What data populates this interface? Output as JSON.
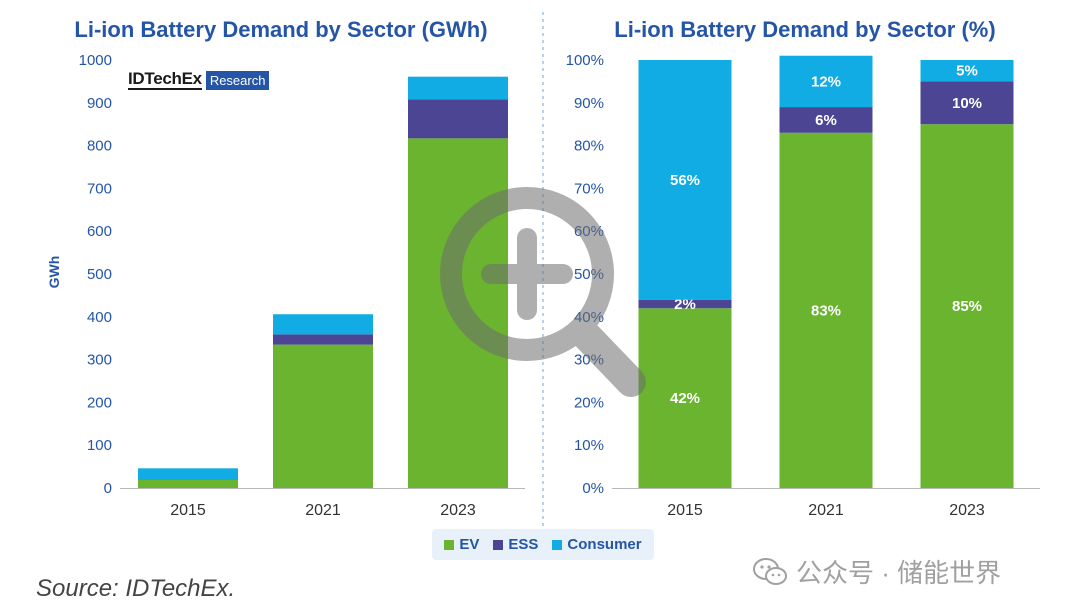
{
  "colors": {
    "EV": "#6ab42f",
    "ESS": "#4b4593",
    "Consumer": "#10ace3"
  },
  "logo": {
    "main": "IDTechEx",
    "tag": "Research"
  },
  "legend": [
    {
      "name": "EV",
      "color_key": "EV"
    },
    {
      "name": "ESS",
      "color_key": "ESS"
    },
    {
      "name": "Consumer",
      "color_key": "Consumer"
    }
  ],
  "source": "Source: IDTechEx.",
  "watermark": "公众号 · 储能世界",
  "chart_data": [
    {
      "type": "bar",
      "stacked": true,
      "title": "Li-ion Battery Demand by Sector (GWh)",
      "ylabel": "GWh",
      "categories": [
        "2015",
        "2021",
        "2023"
      ],
      "ylim": [
        0,
        1000
      ],
      "yticks": [
        "0",
        "100",
        "200",
        "300",
        "400",
        "500",
        "600",
        "700",
        "800",
        "900",
        "1000"
      ],
      "series": [
        {
          "name": "EV",
          "values": [
            19,
            335,
            817
          ]
        },
        {
          "name": "ESS",
          "values": [
            1,
            24,
            91
          ]
        },
        {
          "name": "Consumer",
          "values": [
            26,
            47,
            53
          ]
        }
      ]
    },
    {
      "type": "bar",
      "stacked": true,
      "title": "Li-ion Battery Demand by Sector (%)",
      "categories": [
        "2015",
        "2021",
        "2023"
      ],
      "ylim": [
        0,
        100
      ],
      "yticks": [
        "0%",
        "10%",
        "20%",
        "30%",
        "40%",
        "50%",
        "60%",
        "70%",
        "80%",
        "90%",
        "100%"
      ],
      "series": [
        {
          "name": "EV",
          "values": [
            42,
            83,
            85
          ],
          "labels": [
            "42%",
            "83%",
            "85%"
          ]
        },
        {
          "name": "ESS",
          "values": [
            2,
            6,
            10
          ],
          "labels": [
            "2%",
            "6%",
            "10%"
          ]
        },
        {
          "name": "Consumer",
          "values": [
            56,
            12,
            5
          ],
          "labels": [
            "56%",
            "12%",
            "5%"
          ]
        }
      ]
    }
  ]
}
